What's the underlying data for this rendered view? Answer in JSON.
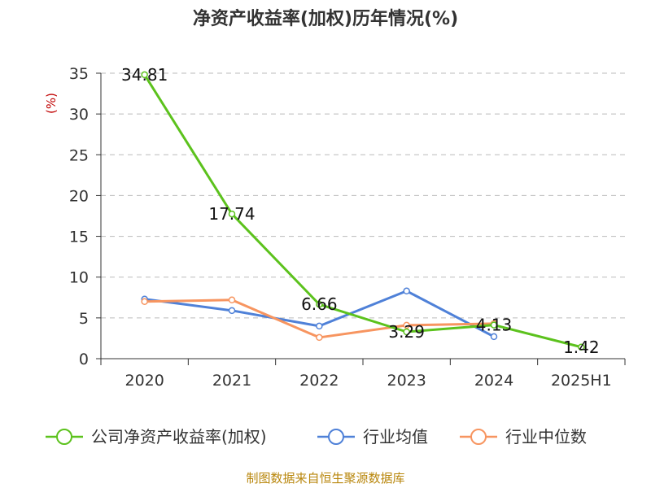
{
  "chart_data": {
    "type": "line",
    "title": "净资产收益率(加权)历年情况(%)",
    "ylabel": "(%)",
    "categories": [
      "2020",
      "2021",
      "2022",
      "2023",
      "2024",
      "2025H1"
    ],
    "y_ticks": [
      "0",
      "5",
      "10",
      "15",
      "20",
      "25",
      "30",
      "35"
    ],
    "ylim": [
      0,
      35
    ],
    "grid": "horizontal-dashed",
    "legend_position": "bottom",
    "series": [
      {
        "name": "公司净资产收益率(加权)",
        "color": "#5cc21d",
        "values": [
          34.81,
          17.74,
          6.66,
          3.29,
          4.13,
          1.42
        ],
        "labels": [
          "34.81",
          "17.74",
          "6.66",
          "3.29",
          "4.13",
          "1.42"
        ]
      },
      {
        "name": "行业均值",
        "color": "#4f81d8",
        "values": [
          7.3,
          5.9,
          4.0,
          8.3,
          2.7,
          null
        ]
      },
      {
        "name": "行业中位数",
        "color": "#f79560",
        "values": [
          7.0,
          7.2,
          2.6,
          4.1,
          4.3,
          null
        ]
      }
    ]
  },
  "footer": {
    "source": "制图数据来自恒生聚源数据库"
  }
}
